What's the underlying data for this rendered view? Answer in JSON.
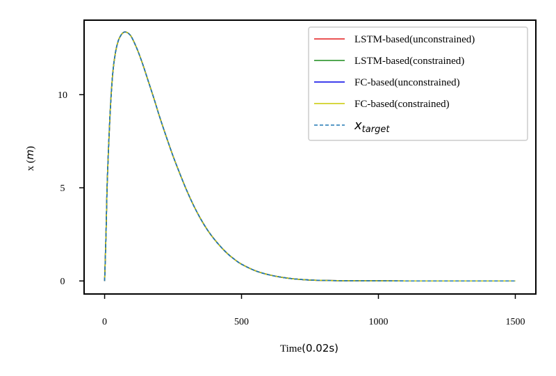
{
  "chart_data": {
    "type": "line",
    "title": "",
    "xlabel": "Time",
    "xlabel_unit": "(0.02s)",
    "ylabel": "x",
    "ylabel_unit": "m",
    "xlim": [
      -75,
      1575
    ],
    "ylim": [
      -0.7,
      14.0
    ],
    "xticks": [
      0,
      500,
      1000,
      1500
    ],
    "yticks": [
      0,
      5,
      10
    ],
    "grid": false,
    "legend_position": "top-right",
    "x": [
      0,
      5,
      10,
      20,
      30,
      40,
      50,
      60,
      70,
      80,
      90,
      100,
      120,
      140,
      160,
      180,
      200,
      225,
      250,
      275,
      300,
      325,
      350,
      375,
      400,
      425,
      450,
      475,
      500,
      550,
      600,
      650,
      700,
      750,
      800,
      850,
      900,
      1000,
      1100,
      1200,
      1300,
      1400,
      1500
    ],
    "series": [
      {
        "name": "LSTM-based(unconstrained)",
        "color": "#e41a1c",
        "style": "solid",
        "values": [
          0,
          2.5,
          5.5,
          9.0,
          11.2,
          12.3,
          12.9,
          13.2,
          13.35,
          13.35,
          13.25,
          13.05,
          12.4,
          11.6,
          10.7,
          9.8,
          8.85,
          7.75,
          6.7,
          5.75,
          4.85,
          4.05,
          3.35,
          2.75,
          2.25,
          1.82,
          1.45,
          1.15,
          0.9,
          0.55,
          0.33,
          0.19,
          0.1,
          0.05,
          0.03,
          0.015,
          0.01,
          0.005,
          0.0,
          0.0,
          0.0,
          0.0,
          0.0
        ]
      },
      {
        "name": "LSTM-based(constrained)",
        "color": "#1a8a1a",
        "style": "solid",
        "values": [
          0,
          2.5,
          5.5,
          9.0,
          11.2,
          12.3,
          12.9,
          13.2,
          13.35,
          13.35,
          13.25,
          13.05,
          12.4,
          11.6,
          10.7,
          9.8,
          8.85,
          7.75,
          6.7,
          5.75,
          4.85,
          4.05,
          3.35,
          2.75,
          2.25,
          1.82,
          1.45,
          1.15,
          0.9,
          0.55,
          0.33,
          0.19,
          0.1,
          0.05,
          0.03,
          0.015,
          0.01,
          0.005,
          0.0,
          0.0,
          0.0,
          0.0,
          0.0
        ]
      },
      {
        "name": "FC-based(unconstrained)",
        "color": "#0000e6",
        "style": "solid",
        "values": [
          0,
          2.5,
          5.5,
          9.0,
          11.2,
          12.3,
          12.9,
          13.2,
          13.35,
          13.35,
          13.25,
          13.05,
          12.4,
          11.6,
          10.7,
          9.8,
          8.85,
          7.75,
          6.7,
          5.75,
          4.85,
          4.05,
          3.35,
          2.75,
          2.25,
          1.82,
          1.45,
          1.15,
          0.9,
          0.55,
          0.33,
          0.19,
          0.1,
          0.05,
          0.03,
          0.015,
          0.01,
          0.005,
          0.0,
          0.0,
          0.0,
          0.0,
          0.0
        ]
      },
      {
        "name": "FC-based(constrained)",
        "color": "#c8c800",
        "style": "solid",
        "values": [
          0,
          2.5,
          5.5,
          9.0,
          11.2,
          12.3,
          12.9,
          13.2,
          13.35,
          13.35,
          13.25,
          13.05,
          12.4,
          11.6,
          10.7,
          9.8,
          8.85,
          7.75,
          6.7,
          5.75,
          4.85,
          4.05,
          3.35,
          2.75,
          2.25,
          1.82,
          1.45,
          1.15,
          0.9,
          0.55,
          0.33,
          0.19,
          0.1,
          0.05,
          0.03,
          0.015,
          0.01,
          0.005,
          0.0,
          0.0,
          0.0,
          0.0,
          0.0
        ]
      },
      {
        "name": "x",
        "name_subscript": "target",
        "color": "#1f77b4",
        "style": "dashed",
        "values": [
          0,
          2.5,
          5.5,
          9.0,
          11.2,
          12.3,
          12.9,
          13.2,
          13.35,
          13.35,
          13.25,
          13.05,
          12.4,
          11.6,
          10.7,
          9.8,
          8.85,
          7.75,
          6.7,
          5.75,
          4.85,
          4.05,
          3.35,
          2.75,
          2.25,
          1.82,
          1.45,
          1.15,
          0.9,
          0.55,
          0.33,
          0.19,
          0.1,
          0.05,
          0.03,
          0.015,
          0.01,
          0.005,
          0.0,
          0.0,
          0.0,
          0.0,
          0.0
        ]
      }
    ]
  }
}
